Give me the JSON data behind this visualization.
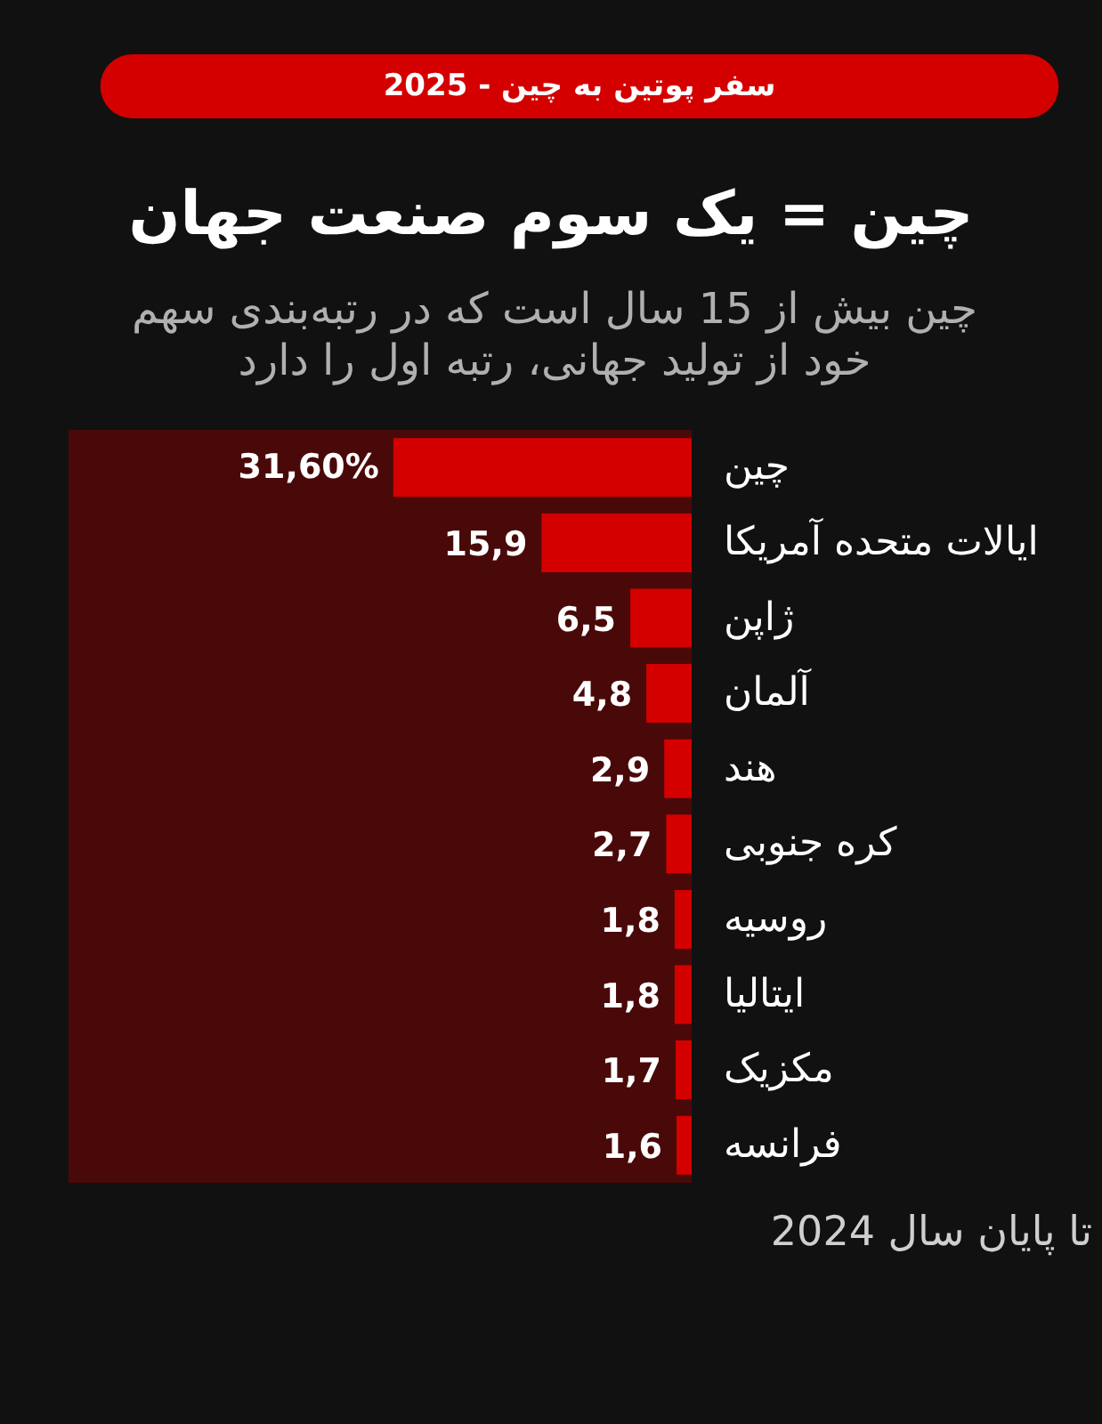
{
  "chart_data": {
    "type": "bar",
    "orientation": "horizontal",
    "title": "چین = یک سوم صنعت جهان",
    "subtitle": "چین بیش از 15 سال است که در رتبه‌بندی سهم خود از تولید جهانی، رتبه اول را دارد",
    "annotations": [
      "سفر پوتین به چین - 2025",
      "تا پایان سال 2024"
    ],
    "categories": [
      "چین",
      "ایالات متحده آمریکا",
      "ژاپن",
      "آلمان",
      "هند",
      "کره جنوبی",
      "روسیه",
      "ایتالیا",
      "مکزیک",
      "فرانسه"
    ],
    "values": [
      31.6,
      15.9,
      6.5,
      4.8,
      2.9,
      2.7,
      1.8,
      1.8,
      1.7,
      1.6
    ],
    "value_labels": [
      "31,60%",
      "15,9",
      "6,5",
      "4,8",
      "2,9",
      "2,7",
      "1,8",
      "1,8",
      "1,7",
      "1,6"
    ],
    "color": "#d40000",
    "xlim": [
      66,
      0
    ],
    "tick_labels": "y"
  }
}
